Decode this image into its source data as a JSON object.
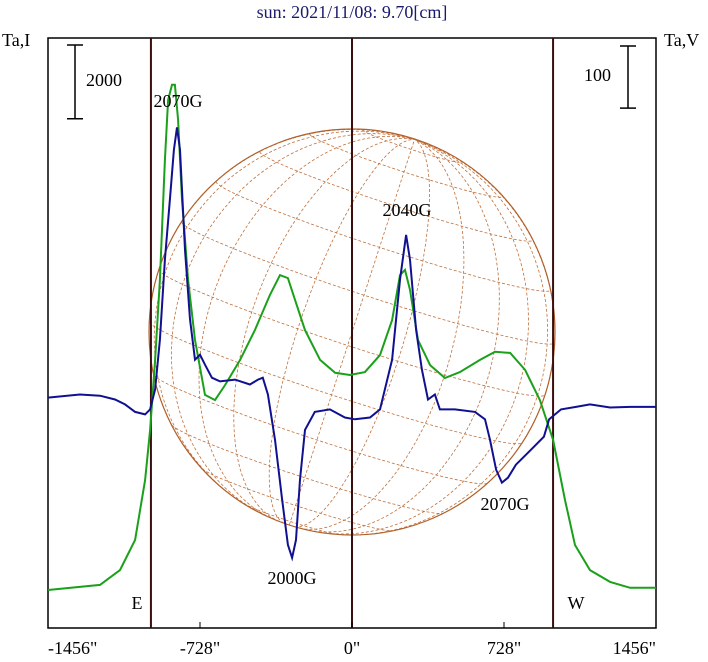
{
  "chart_data": {
    "type": "line",
    "title": "sun: 2021/11/08: 9.70[cm]",
    "ylabel": "Ta,I",
    "y2label": "Ta,V",
    "xlim": [
      -1456,
      1456
    ],
    "xticks": [
      {
        "value": -1456,
        "label": "-1456\""
      },
      {
        "value": -728,
        "label": "-728\""
      },
      {
        "value": 0,
        "label": "0\""
      },
      {
        "value": 728,
        "label": "728\""
      },
      {
        "value": 1456,
        "label": "1456\""
      }
    ],
    "ylim": [
      -1000,
      15000
    ],
    "y2lim": [
      -350,
      600
    ],
    "i_scale": 2000,
    "v_scale": 100,
    "vlines": [
      -963,
      0,
      963
    ],
    "series": [
      {
        "name": "I",
        "color": "#1aa01a",
        "x": [
          -1456,
          -1207,
          -1111,
          -1039,
          -991,
          -967,
          -943,
          -920,
          -896,
          -881,
          -862,
          -848,
          -833,
          -814,
          -785,
          -752,
          -704,
          -656,
          -608,
          -536,
          -465,
          -393,
          -345,
          -307,
          -273,
          -225,
          -153,
          -81,
          -10,
          62,
          134,
          192,
          230,
          254,
          278,
          316,
          374,
          445,
          517,
          613,
          685,
          757,
          829,
          900,
          963,
          1020,
          1068,
          1140,
          1236,
          1332,
          1456
        ],
        "values": [
          30,
          170,
          570,
          1390,
          3010,
          4370,
          6270,
          8440,
          11690,
          13320,
          13730,
          13730,
          12780,
          10610,
          8440,
          6810,
          5320,
          5180,
          5590,
          6270,
          7080,
          8030,
          8570,
          8490,
          7900,
          7080,
          6270,
          5920,
          5860,
          5940,
          6400,
          7350,
          8570,
          8710,
          8170,
          6810,
          6130,
          5780,
          5940,
          6270,
          6490,
          6460,
          6000,
          5180,
          4100,
          2470,
          1250,
          570,
          250,
          90,
          90
        ]
      },
      {
        "name": "V",
        "color": "#101090",
        "axis": "y2",
        "x": [
          -1456,
          -1303,
          -1207,
          -1135,
          -1087,
          -1039,
          -991,
          -967,
          -943,
          -920,
          -896,
          -872,
          -853,
          -838,
          -824,
          -800,
          -776,
          -752,
          -728,
          -704,
          -671,
          -632,
          -560,
          -489,
          -450,
          -427,
          -403,
          -369,
          -335,
          -307,
          -287,
          -268,
          -249,
          -225,
          -178,
          -106,
          -34,
          14,
          86,
          134,
          192,
          230,
          259,
          278,
          307,
          335,
          364,
          397,
          421,
          493,
          589,
          637,
          661,
          690,
          718,
          747,
          785,
          857,
          919,
          944,
          1001,
          1073,
          1140,
          1236,
          1332,
          1456
        ],
        "values": [
          21,
          26,
          24,
          18,
          10,
          -2,
          -6,
          2,
          34,
          114,
          243,
          340,
          420,
          456,
          420,
          259,
          147,
          82,
          90,
          74,
          53,
          47,
          50,
          42,
          50,
          53,
          26,
          -47,
          -143,
          -216,
          -237,
          -208,
          -111,
          -31,
          -2,
          2,
          -11,
          -14,
          -11,
          2,
          82,
          211,
          283,
          243,
          130,
          66,
          18,
          26,
          2,
          2,
          -2,
          -14,
          -47,
          -95,
          -116,
          -108,
          -87,
          -63,
          -42,
          -14,
          2,
          6,
          10,
          5,
          6,
          6
        ]
      }
    ],
    "annotations": [
      "2070G",
      "2040G",
      "2000G",
      "2070G",
      "E",
      "W"
    ]
  }
}
